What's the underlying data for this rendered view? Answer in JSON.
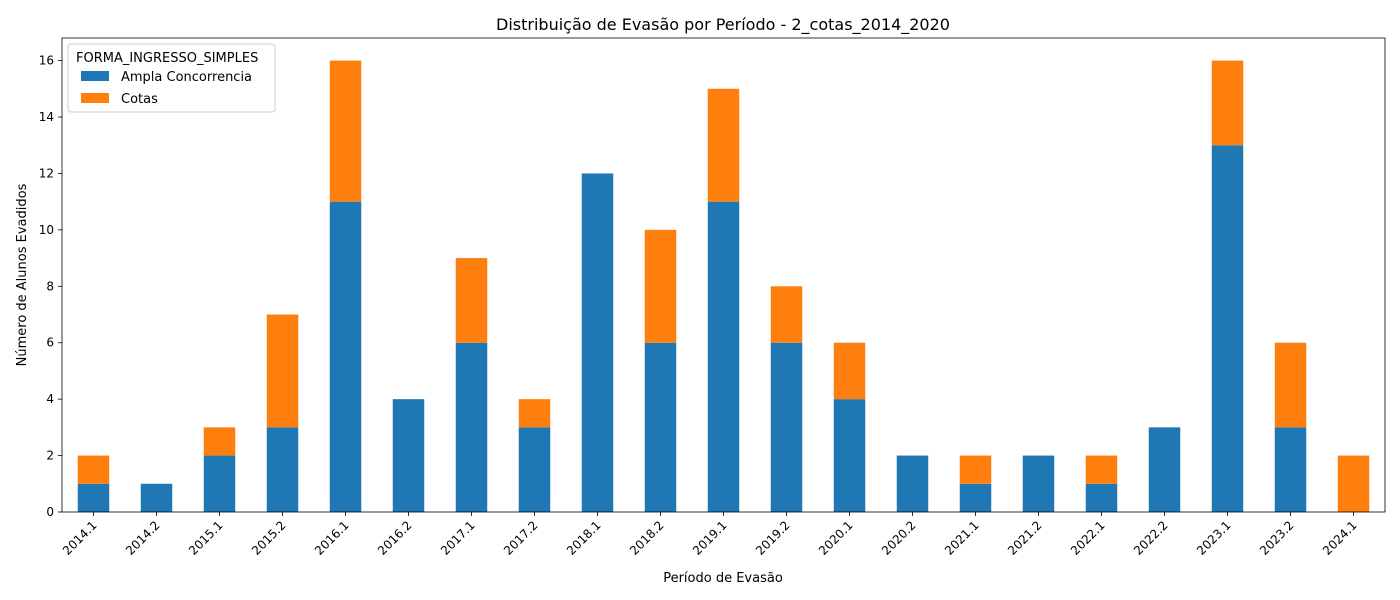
{
  "chart_data": {
    "type": "bar",
    "stacked": true,
    "title": "Distribuição de Evasão por Período - 2_cotas_2014_2020",
    "xlabel": "Período de Evasão",
    "ylabel": "Número de Alunos Evadidos",
    "ylim": [
      0,
      16.8
    ],
    "yticks": [
      0,
      2,
      4,
      6,
      8,
      10,
      12,
      14,
      16
    ],
    "grid": false,
    "legend": {
      "title": "FORMA_INGRESSO_SIMPLES",
      "position": "top-left"
    },
    "categories": [
      "2014.1",
      "2014.2",
      "2015.1",
      "2015.2",
      "2016.1",
      "2016.2",
      "2017.1",
      "2017.2",
      "2018.1",
      "2018.2",
      "2019.1",
      "2019.2",
      "2020.1",
      "2020.2",
      "2021.1",
      "2021.2",
      "2022.1",
      "2022.2",
      "2023.1",
      "2023.2",
      "2024.1"
    ],
    "series": [
      {
        "name": "Ampla Concorrencia",
        "color": "#1f77b4",
        "values": [
          1,
          1,
          2,
          3,
          11,
          4,
          6,
          3,
          12,
          6,
          11,
          6,
          4,
          2,
          1,
          2,
          1,
          3,
          13,
          3,
          0
        ]
      },
      {
        "name": "Cotas",
        "color": "#ff7f0e",
        "values": [
          1,
          0,
          1,
          4,
          5,
          0,
          3,
          1,
          0,
          4,
          4,
          2,
          2,
          0,
          1,
          0,
          1,
          0,
          3,
          3,
          2
        ]
      }
    ]
  }
}
